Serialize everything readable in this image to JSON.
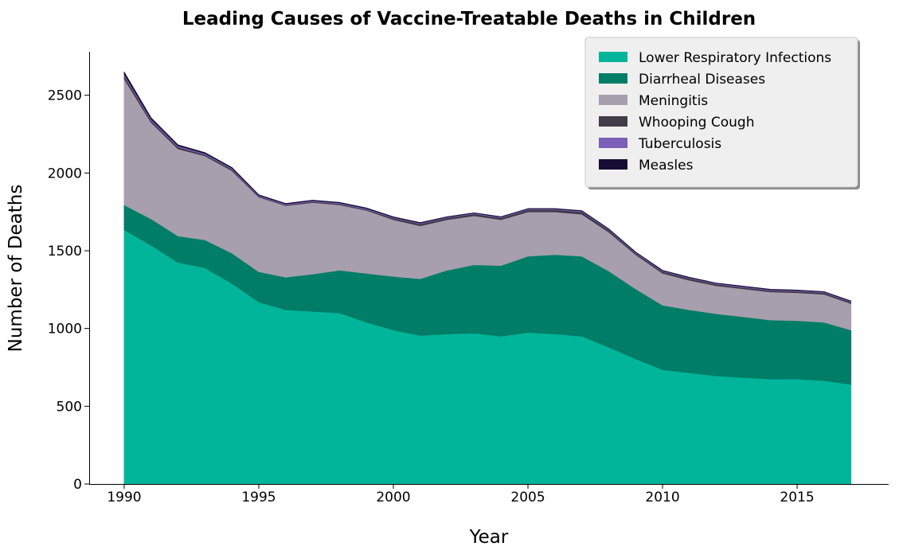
{
  "chart_data": {
    "type": "area",
    "stacked": true,
    "title": "Leading Causes of Vaccine-Treatable Deaths in Children",
    "xlabel": "Year",
    "ylabel": "Number of Deaths",
    "xlim": [
      1988.7,
      2018.4
    ],
    "ylim": [
      0,
      2780
    ],
    "xticks": [
      "1990",
      "1995",
      "2000",
      "2005",
      "2010",
      "2015"
    ],
    "yticks": [
      "0",
      "500",
      "1000",
      "1500",
      "2000",
      "2500"
    ],
    "legend_position": "top-right",
    "grid": false,
    "x": [
      1990,
      1991,
      1992,
      1993,
      1994,
      1995,
      1996,
      1997,
      1998,
      1999,
      2000,
      2001,
      2002,
      2003,
      2004,
      2005,
      2006,
      2007,
      2008,
      2009,
      2010,
      2011,
      2012,
      2013,
      2014,
      2015,
      2016,
      2017
    ],
    "series": [
      {
        "name": "Lower Respiratory Infections",
        "color": "#00b59a",
        "values": [
          1635,
          1535,
          1425,
          1390,
          1290,
          1170,
          1120,
          1110,
          1100,
          1040,
          990,
          955,
          965,
          970,
          950,
          975,
          965,
          950,
          880,
          805,
          735,
          715,
          695,
          685,
          675,
          675,
          665,
          640
        ]
      },
      {
        "name": "Diarrheal Diseases",
        "color": "#007d66",
        "values": [
          160,
          170,
          170,
          180,
          195,
          195,
          210,
          240,
          275,
          315,
          345,
          365,
          410,
          440,
          455,
          490,
          510,
          515,
          490,
          450,
          415,
          405,
          400,
          390,
          380,
          375,
          375,
          350
        ]
      },
      {
        "name": "Meningitis",
        "color": "#a79eae",
        "values": [
          810,
          620,
          560,
          540,
          530,
          480,
          460,
          460,
          420,
          405,
          365,
          340,
          325,
          315,
          295,
          285,
          275,
          270,
          250,
          220,
          205,
          190,
          180,
          180,
          180,
          180,
          180,
          170
        ]
      },
      {
        "name": "Whooping Cough",
        "color": "#403c48",
        "values": [
          20,
          12,
          12,
          8,
          10,
          5,
          5,
          6,
          7,
          6,
          10,
          13,
          12,
          12,
          12,
          14,
          14,
          16,
          14,
          10,
          12,
          12,
          10,
          10,
          10,
          10,
          10,
          10
        ]
      },
      {
        "name": "Tuberculosis",
        "color": "#7b5fb8",
        "values": [
          12,
          10,
          8,
          8,
          7,
          6,
          6,
          6,
          6,
          6,
          5,
          5,
          5,
          5,
          5,
          5,
          5,
          5,
          5,
          5,
          5,
          5,
          5,
          5,
          5,
          5,
          5,
          5
        ]
      },
      {
        "name": "Measles",
        "color": "#160c33",
        "values": [
          13,
          8,
          6,
          5,
          4,
          4,
          3,
          3,
          3,
          3,
          3,
          3,
          2,
          2,
          2,
          2,
          2,
          2,
          2,
          2,
          2,
          2,
          2,
          2,
          2,
          2,
          2,
          2
        ]
      }
    ]
  }
}
